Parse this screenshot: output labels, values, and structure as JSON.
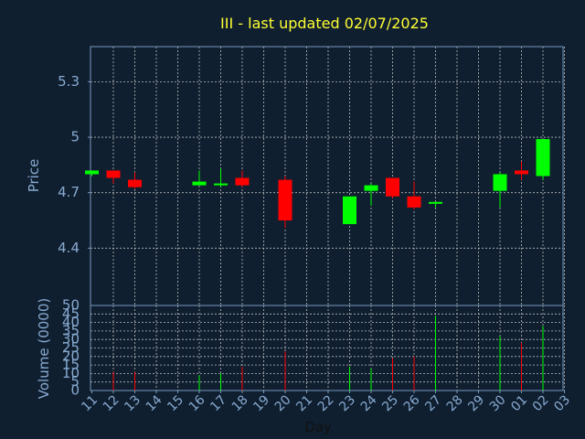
{
  "chart_data": {
    "type": "candlestick",
    "title": "III - last updated 02/07/2025",
    "xlabel": "Day",
    "ylabel_price": "Price",
    "ylabel_volume": "Volume (0000)",
    "x_ticks": [
      "11",
      "12",
      "13",
      "14",
      "15",
      "16",
      "17",
      "18",
      "19",
      "20",
      "21",
      "22",
      "23",
      "24",
      "25",
      "26",
      "27",
      "28",
      "29",
      "30",
      "01",
      "02",
      "03"
    ],
    "price_yticks": [
      "4.4",
      "4.7",
      "5",
      "5.3"
    ],
    "volume_yticks": [
      "0",
      "5",
      "10",
      "15",
      "20",
      "25",
      "30",
      "35",
      "40",
      "45",
      "50"
    ],
    "price_ylim": [
      4.09,
      5.49
    ],
    "volume_ylim": [
      0,
      50
    ],
    "grid": true,
    "colors": {
      "background": "#0f1f30",
      "title": "#ffff33",
      "axis_text": "#88aad0",
      "axis_line": "#7799bb",
      "grid": "#bbbbbb",
      "up": "#00ff00",
      "down": "#ff0000"
    },
    "candles": [
      {
        "day": "11",
        "open": 4.8,
        "high": 4.82,
        "low": 4.79,
        "close": 4.82,
        "volume": 0
      },
      {
        "day": "12",
        "open": 4.82,
        "high": 4.82,
        "low": 4.75,
        "close": 4.78,
        "volume": 11
      },
      {
        "day": "13",
        "open": 4.77,
        "high": 4.81,
        "low": 4.72,
        "close": 4.73,
        "volume": 11
      },
      {
        "day": "16",
        "open": 4.74,
        "high": 4.82,
        "low": 4.74,
        "close": 4.76,
        "volume": 9
      },
      {
        "day": "17",
        "open": 4.74,
        "high": 4.83,
        "low": 4.73,
        "close": 4.75,
        "volume": 10
      },
      {
        "day": "18",
        "open": 4.78,
        "high": 4.82,
        "low": 4.73,
        "close": 4.74,
        "volume": 14
      },
      {
        "day": "20",
        "open": 4.77,
        "high": 4.79,
        "low": 4.51,
        "close": 4.55,
        "volume": 23
      },
      {
        "day": "23",
        "open": 4.53,
        "high": 4.68,
        "low": 4.53,
        "close": 4.68,
        "volume": 14
      },
      {
        "day": "24",
        "open": 4.71,
        "high": 4.75,
        "low": 4.63,
        "close": 4.74,
        "volume": 13
      },
      {
        "day": "25",
        "open": 4.78,
        "high": 4.78,
        "low": 4.67,
        "close": 4.68,
        "volume": 19
      },
      {
        "day": "26",
        "open": 4.68,
        "high": 4.76,
        "low": 4.61,
        "close": 4.62,
        "volume": 20
      },
      {
        "day": "27",
        "open": 4.64,
        "high": 4.65,
        "low": 4.62,
        "close": 4.65,
        "volume": 44
      },
      {
        "day": "30",
        "open": 4.71,
        "high": 4.81,
        "low": 4.62,
        "close": 4.8,
        "volume": 32
      },
      {
        "day": "01",
        "open": 4.82,
        "high": 4.87,
        "low": 4.77,
        "close": 4.8,
        "volume": 28
      },
      {
        "day": "02",
        "open": 4.79,
        "high": 4.99,
        "low": 4.77,
        "close": 4.99,
        "volume": 38
      }
    ]
  }
}
